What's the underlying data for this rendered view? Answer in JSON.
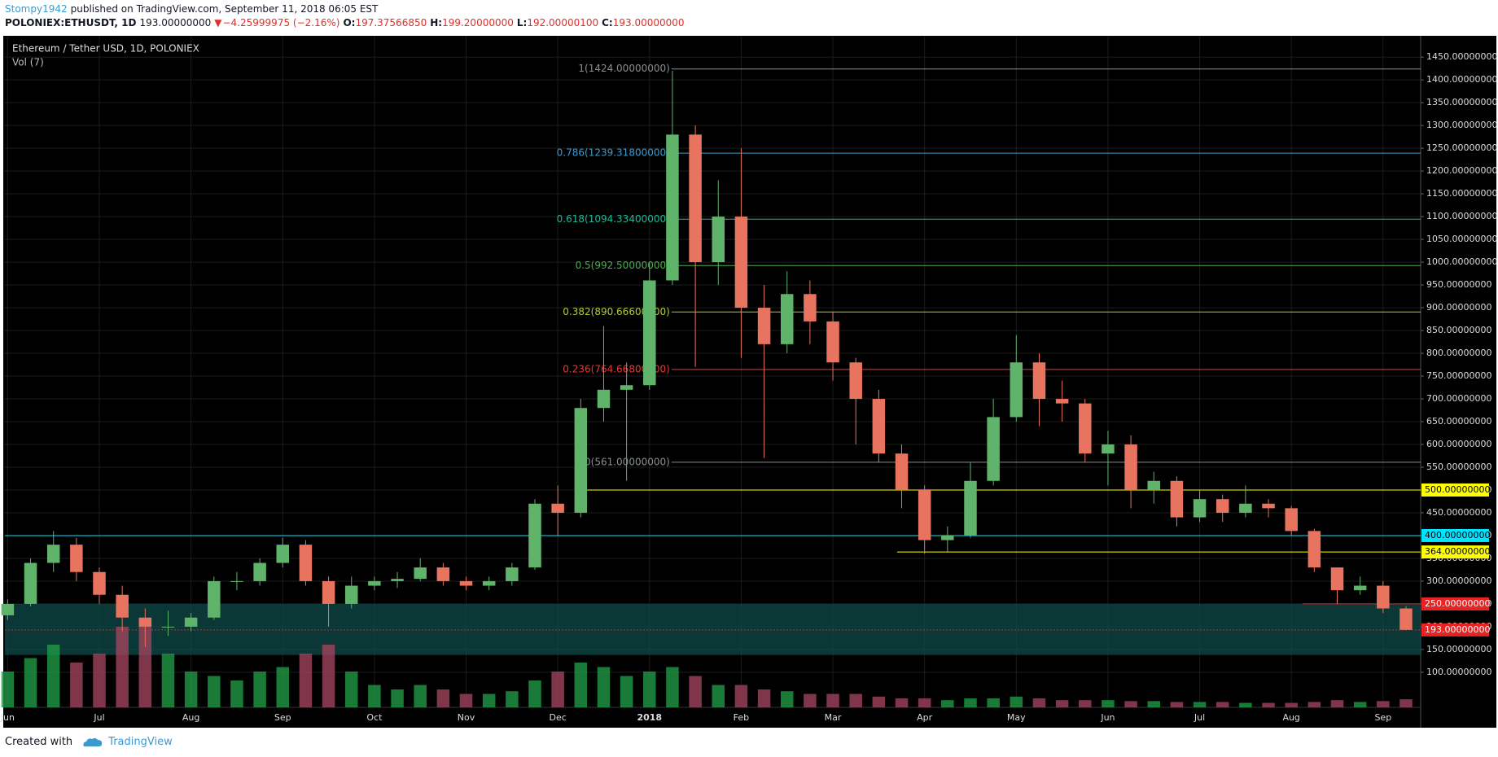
{
  "header": {
    "author": "Stompy1942",
    "published": "published on TradingView.com, September 11, 2018 06:05 EST",
    "symbol": "POLONIEX:ETHUSDT, 1D",
    "last": "193.00000000",
    "arrow": "▼",
    "change": "−4.25999975 (−2.16%)",
    "o_label": "O:",
    "open": "197.37566850",
    "h_label": "H:",
    "high": "199.20000000",
    "l_label": "L:",
    "low": "192.00000100",
    "c_label": "C:",
    "close": "193.00000000"
  },
  "footer": {
    "created": "Created with",
    "brand": "TradingView"
  },
  "chart_data": {
    "type": "candlestick",
    "title": "Ethereum / Tether USD, 1D, POLONIEX",
    "volume_name": "Vol (7)",
    "x": [
      0,
      0.25,
      0.5,
      0.75,
      1,
      1.25,
      1.5,
      1.75,
      2,
      2.25,
      2.5,
      2.75,
      3,
      3.25,
      3.5,
      3.75,
      4,
      4.25,
      4.5,
      4.75,
      5,
      5.25,
      5.5,
      5.75,
      6,
      6.25,
      6.5,
      6.75,
      7,
      7.25,
      7.5,
      7.75,
      8,
      8.25,
      8.5,
      8.75,
      9,
      9.25,
      9.5,
      9.75,
      10,
      10.25,
      10.5,
      10.75,
      11,
      11.25,
      11.5,
      11.75,
      12,
      12.25,
      12.5,
      12.75,
      13,
      13.25,
      13.5,
      13.75,
      14,
      14.25,
      14.5,
      14.75,
      15,
      15.25
    ],
    "open": [
      225,
      250,
      340,
      380,
      320,
      270,
      220,
      200,
      200,
      220,
      300,
      300,
      340,
      380,
      300,
      250,
      290,
      300,
      305,
      330,
      300,
      290,
      300,
      330,
      470,
      450,
      680,
      720,
      730,
      960,
      1280,
      1000,
      1100,
      900,
      820,
      930,
      870,
      780,
      700,
      580,
      500,
      390,
      400,
      520,
      660,
      780,
      700,
      690,
      580,
      600,
      500,
      520,
      440,
      480,
      450,
      470,
      460,
      410,
      330,
      280,
      290,
      240
    ],
    "high": [
      260,
      350,
      410,
      395,
      330,
      290,
      240,
      235,
      230,
      310,
      320,
      350,
      395,
      390,
      310,
      310,
      310,
      320,
      350,
      340,
      310,
      310,
      340,
      480,
      510,
      700,
      860,
      780,
      1000,
      1420,
      1300,
      1180,
      1250,
      950,
      980,
      960,
      890,
      790,
      720,
      600,
      510,
      420,
      560,
      700,
      840,
      800,
      740,
      700,
      630,
      620,
      540,
      530,
      500,
      490,
      510,
      480,
      465,
      415,
      330,
      310,
      300,
      245
    ],
    "low": [
      215,
      245,
      320,
      300,
      250,
      190,
      155,
      180,
      190,
      215,
      280,
      290,
      330,
      290,
      200,
      240,
      280,
      285,
      300,
      290,
      280,
      280,
      290,
      325,
      400,
      440,
      650,
      520,
      720,
      950,
      770,
      950,
      790,
      570,
      800,
      820,
      740,
      600,
      560,
      460,
      360,
      365,
      395,
      510,
      650,
      640,
      650,
      560,
      510,
      460,
      470,
      420,
      430,
      430,
      440,
      440,
      400,
      320,
      250,
      270,
      230,
      192
    ],
    "close": [
      250,
      340,
      380,
      320,
      270,
      220,
      200,
      200,
      220,
      300,
      300,
      340,
      380,
      300,
      250,
      290,
      300,
      305,
      330,
      300,
      290,
      300,
      330,
      470,
      450,
      680,
      720,
      730,
      960,
      1280,
      1000,
      1100,
      900,
      820,
      930,
      870,
      780,
      700,
      580,
      500,
      390,
      400,
      520,
      660,
      780,
      700,
      690,
      580,
      600,
      500,
      520,
      440,
      480,
      450,
      470,
      460,
      410,
      330,
      280,
      290,
      240,
      193
    ],
    "volume": [
      40,
      55,
      70,
      50,
      60,
      90,
      95,
      60,
      40,
      35,
      30,
      40,
      45,
      60,
      70,
      40,
      25,
      20,
      25,
      20,
      15,
      15,
      18,
      30,
      40,
      50,
      45,
      35,
      40,
      45,
      35,
      25,
      25,
      20,
      18,
      15,
      15,
      15,
      12,
      10,
      10,
      8,
      10,
      10,
      12,
      10,
      8,
      8,
      8,
      7,
      7,
      6,
      6,
      6,
      5,
      5,
      5,
      6,
      8,
      6,
      7,
      9
    ],
    "up_color": "#5fb36a",
    "down_color": "#e8735f",
    "vol_up_color": "#1f9a45",
    "vol_down_color": "#a0435c",
    "xlim": [
      -0.03,
      15.41
    ],
    "ylim": [
      23,
      1495
    ],
    "xticks": [
      {
        "value": 0,
        "label": "Jun"
      },
      {
        "value": 1,
        "label": "Jul"
      },
      {
        "value": 2,
        "label": "Aug"
      },
      {
        "value": 3,
        "label": "Sep"
      },
      {
        "value": 4,
        "label": "Oct"
      },
      {
        "value": 5,
        "label": "Nov"
      },
      {
        "value": 6,
        "label": "Dec"
      },
      {
        "value": 7,
        "label": "2018"
      },
      {
        "value": 8,
        "label": "Feb"
      },
      {
        "value": 9,
        "label": "Mar"
      },
      {
        "value": 10,
        "label": "Apr"
      },
      {
        "value": 11,
        "label": "May"
      },
      {
        "value": 12,
        "label": "Jun"
      },
      {
        "value": 13,
        "label": "Jul"
      },
      {
        "value": 14,
        "label": "Aug"
      },
      {
        "value": 15,
        "label": "Sep"
      }
    ],
    "yticks": [
      {
        "value": 100,
        "label": "100.00000000"
      },
      {
        "value": 150,
        "label": "150.00000000"
      },
      {
        "value": 200,
        "label": "200.00000000"
      },
      {
        "value": 250,
        "label": "250.00000000"
      },
      {
        "value": 300,
        "label": "300.00000000"
      },
      {
        "value": 350,
        "label": "350.00000000"
      },
      {
        "value": 400,
        "label": "400.00000000"
      },
      {
        "value": 450,
        "label": "450.00000000"
      },
      {
        "value": 500,
        "label": "500.00000000"
      },
      {
        "value": 550,
        "label": "550.00000000"
      },
      {
        "value": 600,
        "label": "600.00000000"
      },
      {
        "value": 650,
        "label": "650.00000000"
      },
      {
        "value": 700,
        "label": "700.00000000"
      },
      {
        "value": 750,
        "label": "750.00000000"
      },
      {
        "value": 800,
        "label": "800.00000000"
      },
      {
        "value": 850,
        "label": "850.00000000"
      },
      {
        "value": 900,
        "label": "900.00000000"
      },
      {
        "value": 950,
        "label": "950.00000000"
      },
      {
        "value": 1000,
        "label": "1000.00000000"
      },
      {
        "value": 1050,
        "label": "1050.00000000"
      },
      {
        "value": 1100,
        "label": "1100.00000000"
      },
      {
        "value": 1150,
        "label": "1150.00000000"
      },
      {
        "value": 1200,
        "label": "1200.00000000"
      },
      {
        "value": 1250,
        "label": "1250.00000000"
      },
      {
        "value": 1300,
        "label": "1300.00000000"
      },
      {
        "value": 1350,
        "label": "1350.00000000"
      },
      {
        "value": 1400,
        "label": "1400.00000000"
      },
      {
        "value": 1450,
        "label": "1450.00000000"
      }
    ],
    "grid": true,
    "fib": [
      {
        "value": 1424,
        "label": "1(1424.00000000)",
        "color": "#8a8d94",
        "x_start": 7.24
      },
      {
        "value": 1239.318,
        "label": "0.786(1239.31800000)",
        "color": "#3d9ad1",
        "x_start": 7.24
      },
      {
        "value": 1094.334,
        "label": "0.618(1094.33400000)",
        "color": "#1fb89a",
        "x_start": 7.24
      },
      {
        "value": 992.5,
        "label": "0.5(992.50000000)",
        "color": "#4caf50",
        "x_start": 7.24
      },
      {
        "value": 890.666,
        "label": "0.382(890.66600000)",
        "color": "#b5c935",
        "x_start": 7.24
      },
      {
        "value": 764.668,
        "label": "0.236(764.66800000)",
        "color": "#e53935",
        "x_start": 7.24
      },
      {
        "value": 561,
        "label": "0(561.00000000)",
        "color": "#8a8d94",
        "x_start": 7.24
      }
    ],
    "levels": [
      {
        "value": 500,
        "label": "500.00000000",
        "color": "#ffff00",
        "x_start": 6.22
      },
      {
        "value": 400,
        "label": "400.00000000",
        "color": "#00e5ff",
        "x_start": -0.03
      },
      {
        "value": 364,
        "label": "364.00000000",
        "color": "#ffff00",
        "x_start": 9.7
      },
      {
        "value": 250,
        "label": "250.00000000",
        "color": "#e52424",
        "x_start": 14.12
      },
      {
        "value": 193,
        "label": "193.00000000",
        "color": "#e52424",
        "x_start": -0.03
      }
    ],
    "zone": {
      "from": 138,
      "to": 250,
      "color": "#0f4a4a"
    }
  }
}
